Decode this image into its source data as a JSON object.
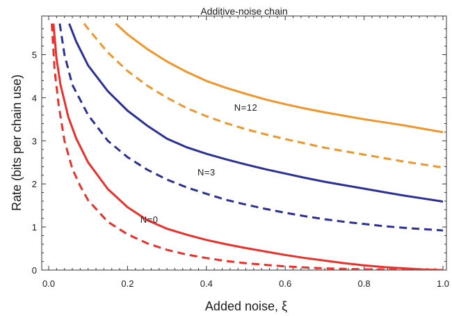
{
  "chart_data": {
    "type": "line",
    "title": "Additive-noise chain",
    "xlabel": "Added noise, ξ",
    "ylabel": "Rate (bits per chain use)",
    "xlim": [
      0,
      1.0
    ],
    "ylim": [
      0,
      5.7
    ],
    "xticks": [
      0.0,
      0.2,
      0.4,
      0.6,
      0.8,
      1.0
    ],
    "xtick_labels": [
      "0.0",
      "0.2",
      "0.4",
      "0.6",
      "0.8",
      "1.0"
    ],
    "yticks": [
      0,
      1,
      2,
      3,
      4,
      5
    ],
    "ytick_labels": [
      "0",
      "1",
      "2",
      "3",
      "4",
      "5"
    ],
    "grid": false,
    "colors": {
      "N0": "#e8302c",
      "N3": "#2b2f96",
      "N12": "#f0952c"
    },
    "annotations": [
      {
        "text": "N=12",
        "x": 0.5,
        "y": 3.78
      },
      {
        "text": "N=3",
        "x": 0.4,
        "y": 2.28
      },
      {
        "text": "N=0",
        "x": 0.255,
        "y": 1.18
      }
    ],
    "series": [
      {
        "group": "N12",
        "style": "solid",
        "x": [
          0.17,
          0.2,
          0.25,
          0.3,
          0.35,
          0.4,
          0.45,
          0.5,
          0.55,
          0.6,
          0.65,
          0.7,
          0.75,
          0.8,
          0.85,
          0.9,
          0.95,
          1.0
        ],
        "y": [
          5.72,
          5.47,
          5.13,
          4.84,
          4.6,
          4.39,
          4.23,
          4.09,
          3.96,
          3.85,
          3.75,
          3.66,
          3.58,
          3.5,
          3.43,
          3.36,
          3.28,
          3.2
        ]
      },
      {
        "group": "N12",
        "style": "dashed",
        "x": [
          0.09,
          0.1,
          0.15,
          0.2,
          0.25,
          0.3,
          0.35,
          0.4,
          0.45,
          0.5,
          0.55,
          0.6,
          0.65,
          0.7,
          0.75,
          0.8,
          0.85,
          0.9,
          0.95,
          1.0
        ],
        "y": [
          5.72,
          5.6,
          5.05,
          4.62,
          4.28,
          4.0,
          3.76,
          3.57,
          3.41,
          3.27,
          3.15,
          3.04,
          2.94,
          2.84,
          2.76,
          2.68,
          2.6,
          2.52,
          2.45,
          2.38
        ]
      },
      {
        "group": "N3",
        "style": "solid",
        "x": [
          0.052,
          0.07,
          0.1,
          0.15,
          0.2,
          0.25,
          0.3,
          0.35,
          0.4,
          0.45,
          0.5,
          0.55,
          0.6,
          0.65,
          0.7,
          0.75,
          0.8,
          0.85,
          0.9,
          0.95,
          1.0
        ],
        "y": [
          5.72,
          5.3,
          4.75,
          4.15,
          3.7,
          3.35,
          3.05,
          2.85,
          2.7,
          2.57,
          2.45,
          2.34,
          2.24,
          2.14,
          2.05,
          1.97,
          1.89,
          1.81,
          1.73,
          1.66,
          1.59
        ]
      },
      {
        "group": "N3",
        "style": "dashed",
        "x": [
          0.028,
          0.04,
          0.06,
          0.1,
          0.15,
          0.2,
          0.25,
          0.3,
          0.35,
          0.4,
          0.45,
          0.5,
          0.55,
          0.6,
          0.65,
          0.7,
          0.75,
          0.8,
          0.85,
          0.9,
          0.95,
          1.0
        ],
        "y": [
          5.72,
          5.0,
          4.3,
          3.6,
          3.0,
          2.62,
          2.33,
          2.1,
          1.92,
          1.77,
          1.63,
          1.52,
          1.42,
          1.33,
          1.25,
          1.18,
          1.12,
          1.07,
          1.02,
          0.98,
          0.95,
          0.92
        ]
      },
      {
        "group": "N0",
        "style": "solid",
        "x": [
          0.012,
          0.02,
          0.03,
          0.05,
          0.07,
          0.1,
          0.15,
          0.2,
          0.25,
          0.3,
          0.35,
          0.4,
          0.45,
          0.5,
          0.55,
          0.6,
          0.65,
          0.7,
          0.75,
          0.8,
          0.85,
          0.9,
          0.95,
          1.0
        ],
        "y": [
          5.72,
          4.9,
          4.3,
          3.55,
          3.05,
          2.5,
          1.88,
          1.46,
          1.16,
          0.96,
          0.82,
          0.7,
          0.6,
          0.51,
          0.43,
          0.35,
          0.28,
          0.22,
          0.16,
          0.11,
          0.07,
          0.04,
          0.015,
          0.0
        ]
      },
      {
        "group": "N0",
        "style": "dashed",
        "x": [
          0.008,
          0.015,
          0.025,
          0.04,
          0.06,
          0.08,
          0.1,
          0.15,
          0.2,
          0.25,
          0.3,
          0.35,
          0.4,
          0.45,
          0.5,
          0.55,
          0.6,
          0.65,
          0.7,
          0.75,
          0.8,
          0.85,
          0.9,
          0.95,
          1.0
        ],
        "y": [
          5.72,
          4.65,
          3.85,
          3.0,
          2.35,
          1.95,
          1.62,
          1.12,
          0.83,
          0.62,
          0.47,
          0.36,
          0.28,
          0.21,
          0.16,
          0.12,
          0.085,
          0.06,
          0.04,
          0.027,
          0.017,
          0.01,
          0.005,
          0.002,
          0.0
        ]
      }
    ]
  }
}
